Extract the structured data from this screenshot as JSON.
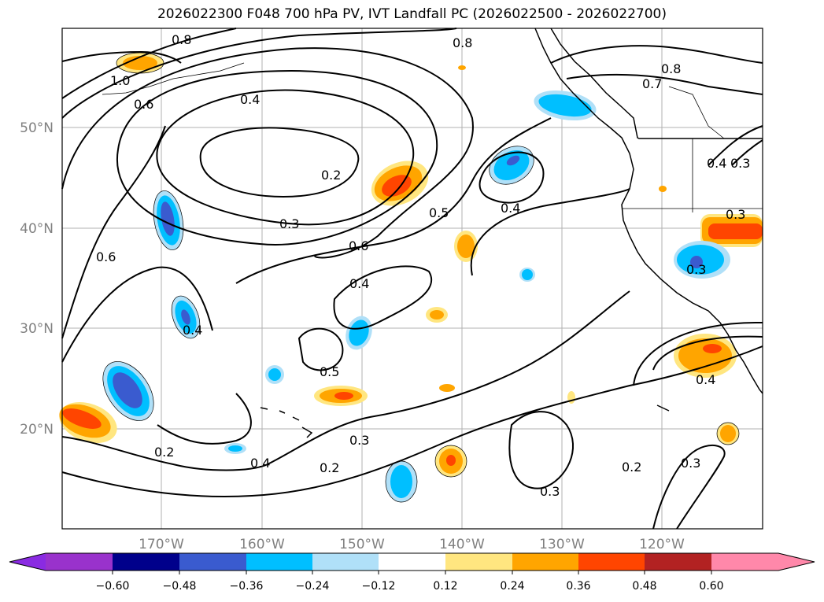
{
  "map": {
    "title": "2026022300 F048 700 hPa PV, IVT Landfall PC (2026022500 - 2026022700)",
    "lat_labels": [
      "50°N",
      "40°N",
      "30°N",
      "20°N"
    ],
    "lon_labels": [
      "170°W",
      "160°W",
      "150°W",
      "140°W",
      "130°W",
      "120°W"
    ],
    "contour_labels": [
      "0.8",
      "1.0",
      "0.6",
      "0.4",
      "0.8",
      "0.8",
      "0.7",
      "0.2",
      "0.3",
      "0.5",
      "0.6",
      "0.4",
      "0.6",
      "0.4",
      "0.4",
      "0.5",
      "0.3",
      "0.2",
      "0.2",
      "0.4",
      "0.3",
      "0.3",
      "0.2",
      "0.3",
      "0.4",
      "0.4",
      "0.3",
      "0.3"
    ],
    "anomaly_colors": {
      "neg_strong": "#3a5bcf",
      "neg_mid": "#00bfff",
      "pos_mid": "#ffa500",
      "pos_strong": "#ff4500",
      "pos_weak": "#ffe680"
    }
  },
  "colorbar": {
    "ticks": [
      "−0.60",
      "−0.48",
      "−0.36",
      "−0.24",
      "−0.12",
      "0.12",
      "0.24",
      "0.36",
      "0.48",
      "0.60"
    ],
    "colors": [
      "#8a2be2",
      "#9932cc",
      "#00008b",
      "#3a5bcf",
      "#00bfff",
      "#b0e0f8",
      "#ffffff",
      "#ffe680",
      "#ffa500",
      "#ff4500",
      "#b22222",
      "#ff88aa"
    ]
  }
}
